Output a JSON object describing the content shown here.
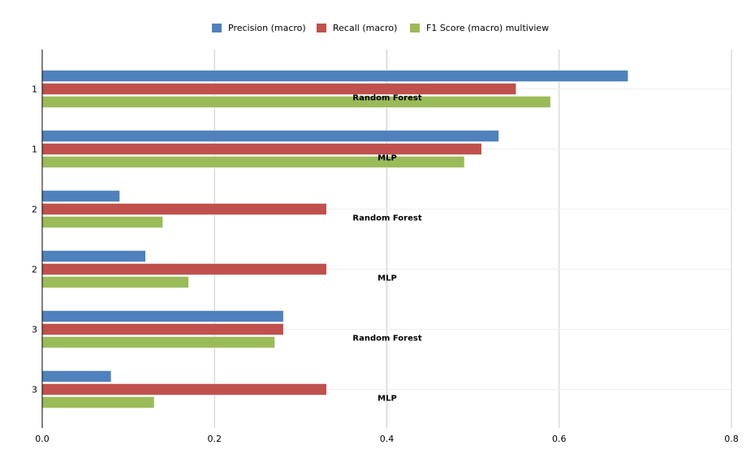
{
  "chart_data": {
    "type": "bar",
    "orientation": "horizontal",
    "categories": [
      "1",
      "1",
      "2",
      "2",
      "3",
      "3"
    ],
    "group_labels": [
      "Random Forest",
      "MLP",
      "Random Forest",
      "MLP",
      "Random Forest",
      "MLP"
    ],
    "series": [
      {
        "name": "Precision (macro)",
        "color": "#4f81bd",
        "values": [
          0.68,
          0.53,
          0.09,
          0.12,
          0.28,
          0.08
        ]
      },
      {
        "name": "Recall (macro)",
        "color": "#c0504d",
        "values": [
          0.55,
          0.51,
          0.33,
          0.33,
          0.28,
          0.33
        ]
      },
      {
        "name": "F1 Score (macro) multiview",
        "color": "#9bbb59",
        "values": [
          0.59,
          0.49,
          0.14,
          0.17,
          0.27,
          0.13
        ]
      }
    ],
    "xlim": [
      0,
      0.8
    ],
    "xticks": [
      "0.0",
      "0.2",
      "0.4",
      "0.6",
      "0.8"
    ],
    "title": "",
    "xlabel": "",
    "ylabel": "",
    "grid": true,
    "legend_position": "top-center"
  }
}
